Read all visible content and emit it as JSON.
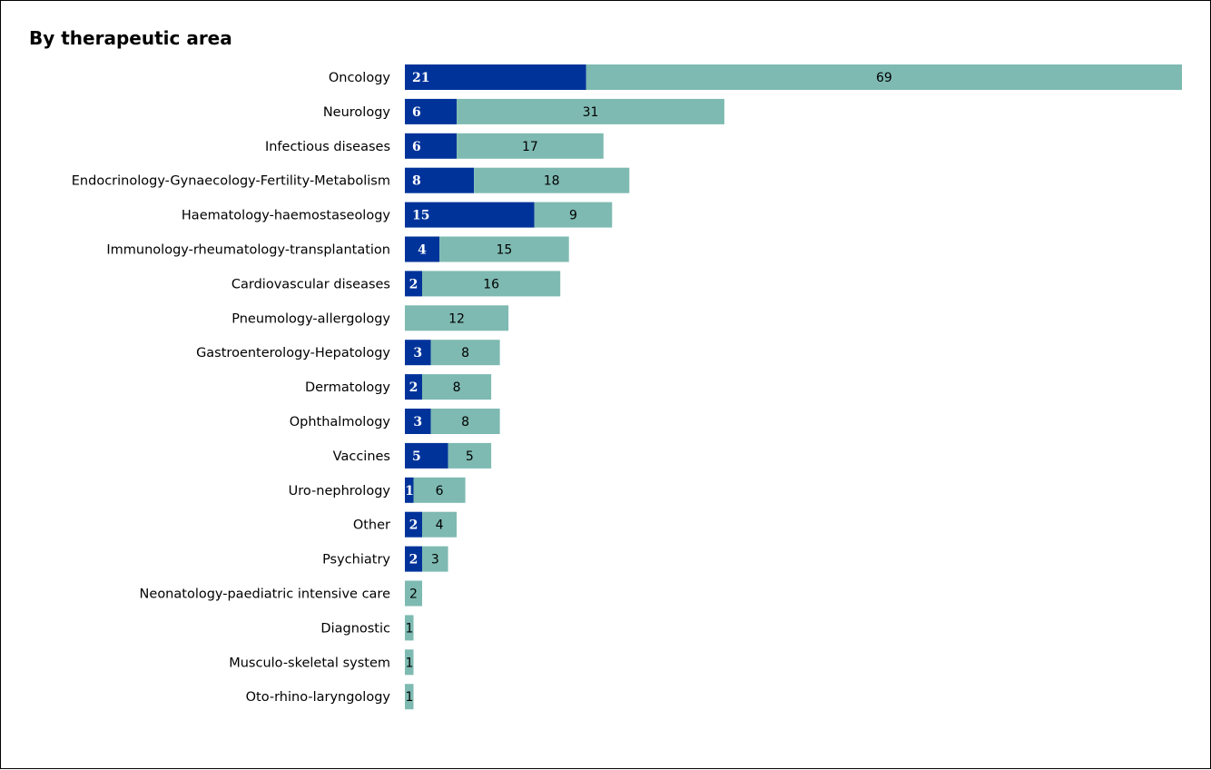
{
  "chart_data": {
    "type": "bar",
    "orientation": "horizontal",
    "stacked": true,
    "title": "By therapeutic area",
    "xlabel": "",
    "ylabel": "",
    "grid": false,
    "legend": "none",
    "categories": [
      "Oncology",
      "Neurology",
      "Infectious diseases",
      "Endocrinology-Gynaecology-Fertility-Metabolism",
      "Haematology-haemostaseology",
      "Immunology-rheumatology-transplantation",
      "Cardiovascular diseases",
      "Pneumology-allergology",
      "Gastroenterology-Hepatology",
      "Dermatology",
      "Ophthalmology",
      "Vaccines",
      "Uro-nephrology",
      "Other",
      "Psychiatry",
      "Neonatology-paediatric intensive care",
      "Diagnostic",
      "Musculo-skeletal system",
      "Oto-rhino-laryngology"
    ],
    "series": [
      {
        "color": "#00339a",
        "values": [
          21,
          6,
          6,
          8,
          15,
          4,
          2,
          0,
          3,
          2,
          3,
          5,
          1,
          2,
          2,
          0,
          0,
          0,
          0
        ]
      },
      {
        "color": "#7ebab2",
        "values": [
          69,
          31,
          17,
          18,
          9,
          15,
          16,
          12,
          8,
          8,
          8,
          5,
          6,
          4,
          3,
          2,
          1,
          1,
          1
        ]
      }
    ],
    "xlim": [
      0,
      90
    ]
  }
}
